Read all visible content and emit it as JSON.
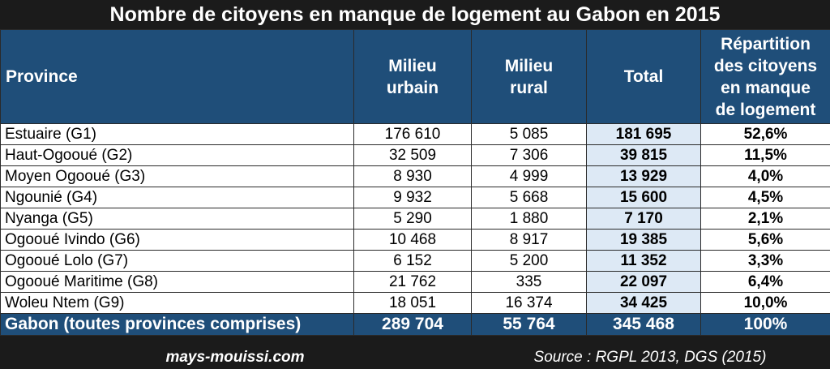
{
  "title": "Nombre de citoyens en manque de logement au Gabon en 2015",
  "header": {
    "province": "Province",
    "urbain": [
      "Milieu",
      "urbain"
    ],
    "rural": [
      "Milieu",
      "rural"
    ],
    "total": "Total",
    "share": [
      "Répartition",
      "des citoyens",
      "en manque",
      "de logement"
    ]
  },
  "rows": [
    {
      "province": "Estuaire (G1)",
      "urbain": "176 610",
      "rural": "5 085",
      "total": "181 695",
      "share": "52,6%"
    },
    {
      "province": "Haut-Ogooué (G2)",
      "urbain": "32 509",
      "rural": "7 306",
      "total": "39 815",
      "share": "11,5%"
    },
    {
      "province": "Moyen Ogooué (G3)",
      "urbain": "8 930",
      "rural": "4 999",
      "total": "13 929",
      "share": "4,0%"
    },
    {
      "province": "Ngounié (G4)",
      "urbain": "9 932",
      "rural": "5 668",
      "total": "15 600",
      "share": "4,5%"
    },
    {
      "province": "Nyanga (G5)",
      "urbain": "5 290",
      "rural": "1 880",
      "total": "7 170",
      "share": "2,1%"
    },
    {
      "province": "Ogooué Ivindo (G6)",
      "urbain": "10 468",
      "rural": "8 917",
      "total": "19 385",
      "share": "5,6%"
    },
    {
      "province": "Ogooué Lolo (G7)",
      "urbain": "6 152",
      "rural": "5 200",
      "total": "11 352",
      "share": "3,3%"
    },
    {
      "province": "Ogooué Maritime (G8)",
      "urbain": "21 762",
      "rural": "335",
      "total": "22 097",
      "share": "6,4%"
    },
    {
      "province": "Woleu Ntem (G9)",
      "urbain": "18 051",
      "rural": "16 374",
      "total": "34 425",
      "share": "10,0%"
    }
  ],
  "totals": {
    "province": "Gabon (toutes provinces comprises)",
    "urbain": "289 704",
    "rural": "55 764",
    "total": "345 468",
    "share": "100%"
  },
  "footer": {
    "site": "mays-mouissi.com",
    "source": "Source : RGPL 2013, DGS (2015)"
  },
  "colors": {
    "header_bg": "#1f4e79",
    "total_column_bg": "#dde9f5",
    "frame_bg": "#1b1b1b"
  }
}
